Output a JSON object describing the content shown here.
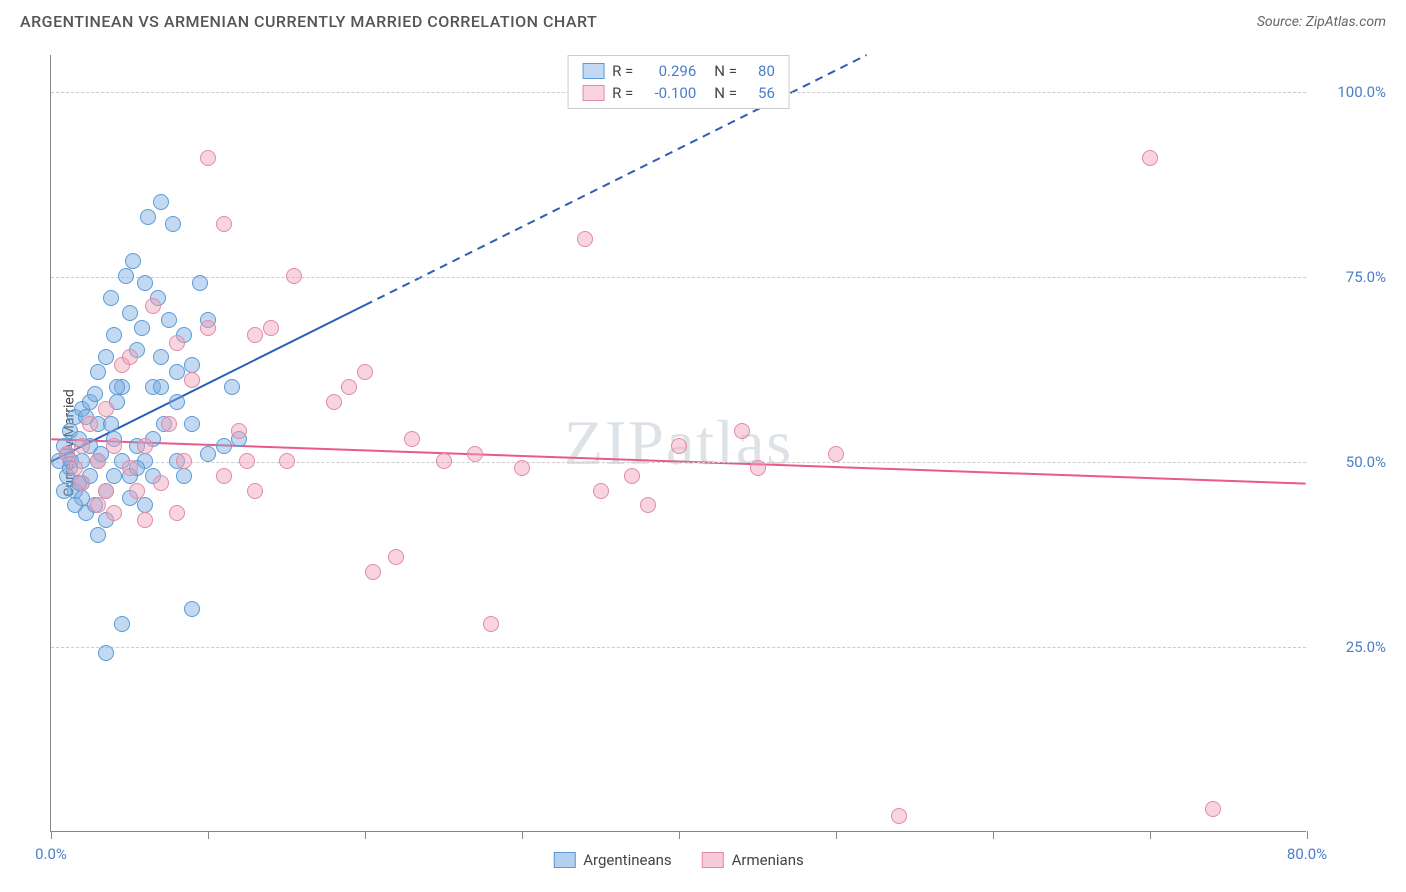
{
  "title": "ARGENTINEAN VS ARMENIAN CURRENTLY MARRIED CORRELATION CHART",
  "source_label": "Source: ZipAtlas.com",
  "watermark": "ZIPatlas",
  "chart": {
    "type": "scatter",
    "ylabel": "Currently Married",
    "background_color": "#ffffff",
    "grid_color": "#cccccc",
    "axis_color": "#888888",
    "tick_label_color": "#4a7ec9",
    "xlim": [
      0,
      80
    ],
    "ylim": [
      0,
      105
    ],
    "x_ticks": [
      0,
      10,
      20,
      30,
      40,
      50,
      60,
      70,
      80
    ],
    "x_tick_labels": {
      "0": "0.0%",
      "80": "80.0%"
    },
    "y_gridlines": [
      25,
      50,
      75,
      100
    ],
    "y_tick_labels": {
      "25": "25.0%",
      "50": "50.0%",
      "75": "75.0%",
      "100": "100.0%"
    },
    "marker_radius": 8,
    "series": [
      {
        "name": "Argentineans",
        "fill_color": "rgba(120,170,225,0.45)",
        "stroke_color": "#5c9bd6",
        "trend": {
          "color": "#2c5fb3",
          "width": 2,
          "solid_to_x": 20,
          "x1": 0,
          "y1": 50,
          "x2": 52,
          "y2": 105
        },
        "r_label": "R =",
        "r_value": "0.296",
        "n_label": "N =",
        "n_value": "80",
        "points": [
          [
            0.5,
            50
          ],
          [
            0.8,
            52
          ],
          [
            1,
            48
          ],
          [
            1,
            51
          ],
          [
            1.2,
            54
          ],
          [
            1.3,
            50
          ],
          [
            1.5,
            46
          ],
          [
            1.5,
            56
          ],
          [
            1.8,
            53
          ],
          [
            2,
            45
          ],
          [
            2,
            47
          ],
          [
            2,
            50
          ],
          [
            2,
            57
          ],
          [
            2.2,
            43
          ],
          [
            2.5,
            48
          ],
          [
            2.5,
            52
          ],
          [
            2.5,
            58
          ],
          [
            2.8,
            44
          ],
          [
            3,
            40
          ],
          [
            3,
            50
          ],
          [
            3,
            55
          ],
          [
            3,
            62
          ],
          [
            3.2,
            51
          ],
          [
            3.5,
            42
          ],
          [
            3.5,
            46
          ],
          [
            3.5,
            64
          ],
          [
            3.8,
            72
          ],
          [
            4,
            48
          ],
          [
            4,
            53
          ],
          [
            4,
            67
          ],
          [
            4.2,
            58
          ],
          [
            4.5,
            50
          ],
          [
            4.5,
            60
          ],
          [
            4.8,
            75
          ],
          [
            5,
            45
          ],
          [
            5,
            70
          ],
          [
            5.2,
            77
          ],
          [
            5.5,
            52
          ],
          [
            5.5,
            65
          ],
          [
            5.8,
            68
          ],
          [
            6,
            50
          ],
          [
            6,
            74
          ],
          [
            6.2,
            83
          ],
          [
            6.5,
            48
          ],
          [
            6.5,
            60
          ],
          [
            6.8,
            72
          ],
          [
            7,
            85
          ],
          [
            7,
            64
          ],
          [
            7.2,
            55
          ],
          [
            7.5,
            69
          ],
          [
            7.8,
            82
          ],
          [
            8,
            50
          ],
          [
            8,
            58
          ],
          [
            8.5,
            67
          ],
          [
            9,
            30
          ],
          [
            9,
            63
          ],
          [
            9.5,
            74
          ],
          [
            10,
            51
          ],
          [
            3.5,
            24
          ],
          [
            4.5,
            28
          ],
          [
            5,
            48
          ],
          [
            6,
            44
          ],
          [
            6.5,
            53
          ],
          [
            7,
            60
          ],
          [
            8,
            62
          ],
          [
            8.5,
            48
          ],
          [
            9,
            55
          ],
          [
            10,
            69
          ],
          [
            11,
            52
          ],
          [
            11.5,
            60
          ],
          [
            12,
            53
          ],
          [
            5.5,
            49
          ],
          [
            4.2,
            60
          ],
          [
            3.8,
            55
          ],
          [
            2.8,
            59
          ],
          [
            2.2,
            56
          ],
          [
            1.8,
            47
          ],
          [
            1.5,
            44
          ],
          [
            1.2,
            49
          ],
          [
            0.8,
            46
          ]
        ]
      },
      {
        "name": "Armenians",
        "fill_color": "rgba(240,160,185,0.45)",
        "stroke_color": "#e08ba8",
        "trend": {
          "color": "#e85a8a",
          "width": 2,
          "x1": 0,
          "y1": 53,
          "x2": 80,
          "y2": 47
        },
        "r_label": "R =",
        "r_value": "-0.100",
        "n_label": "N =",
        "n_value": "56",
        "points": [
          [
            1,
            51
          ],
          [
            1.5,
            49
          ],
          [
            2,
            52
          ],
          [
            2,
            47
          ],
          [
            2.5,
            55
          ],
          [
            3,
            44
          ],
          [
            3,
            50
          ],
          [
            3.5,
            57
          ],
          [
            4,
            52
          ],
          [
            4.5,
            63
          ],
          [
            5,
            49
          ],
          [
            5,
            64
          ],
          [
            5.5,
            46
          ],
          [
            6,
            52
          ],
          [
            6.5,
            71
          ],
          [
            7,
            47
          ],
          [
            7.5,
            55
          ],
          [
            8,
            66
          ],
          [
            8.5,
            50
          ],
          [
            9,
            61
          ],
          [
            10,
            91
          ],
          [
            10,
            68
          ],
          [
            11,
            82
          ],
          [
            12,
            54
          ],
          [
            12.5,
            50
          ],
          [
            13,
            67
          ],
          [
            14,
            68
          ],
          [
            15,
            50
          ],
          [
            15.5,
            75
          ],
          [
            18,
            58
          ],
          [
            19,
            60
          ],
          [
            20,
            62
          ],
          [
            20.5,
            35
          ],
          [
            22,
            37
          ],
          [
            23,
            53
          ],
          [
            25,
            50
          ],
          [
            27,
            51
          ],
          [
            28,
            28
          ],
          [
            30,
            49
          ],
          [
            34,
            80
          ],
          [
            35,
            46
          ],
          [
            37,
            48
          ],
          [
            38,
            44
          ],
          [
            40,
            52
          ],
          [
            44,
            54
          ],
          [
            45,
            49
          ],
          [
            50,
            51
          ],
          [
            54,
            2
          ],
          [
            70,
            91
          ],
          [
            74,
            3
          ],
          [
            6,
            42
          ],
          [
            8,
            43
          ],
          [
            11,
            48
          ],
          [
            13,
            46
          ],
          [
            4,
            43
          ],
          [
            3.5,
            46
          ]
        ]
      }
    ],
    "legend_bottom": [
      {
        "label": "Argentineans",
        "fill": "rgba(120,170,225,0.55)",
        "stroke": "#5c9bd6"
      },
      {
        "label": "Armenians",
        "fill": "rgba(240,160,185,0.55)",
        "stroke": "#e08ba8"
      }
    ]
  }
}
